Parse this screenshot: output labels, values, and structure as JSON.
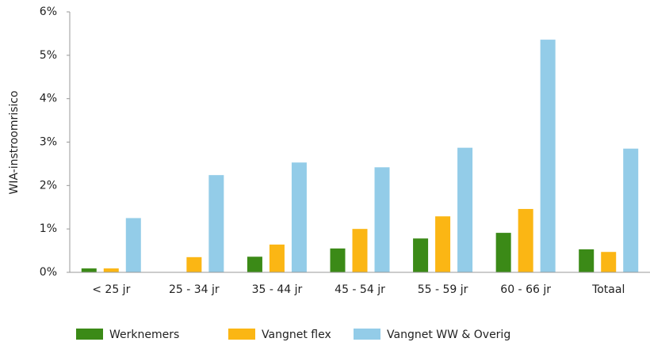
{
  "chart_data": {
    "type": "bar",
    "ylabel": "WIA-instroomrisico",
    "categories": [
      "< 25 jr",
      "25 - 34 jr",
      "35 - 44 jr",
      "45 - 54 jr",
      "55 - 59 jr",
      "60 - 66 jr",
      "Totaal"
    ],
    "series": [
      {
        "name": "Werknemers",
        "color": "#3b8a17",
        "values": [
          0.09,
          0,
          0.36,
          0.55,
          0.78,
          0.91,
          0.53
        ]
      },
      {
        "name": "Vangnet flex",
        "color": "#fbb614",
        "values": [
          0.09,
          0.35,
          0.64,
          1.0,
          1.29,
          1.46,
          0.47
        ]
      },
      {
        "name": "Vangnet WW & Overig",
        "color": "#93cce8",
        "values": [
          1.25,
          2.24,
          2.53,
          2.42,
          2.87,
          5.36,
          2.85
        ]
      }
    ],
    "ylim": [
      0,
      6
    ],
    "yticks": [
      {
        "value": 0,
        "label": "0%"
      },
      {
        "value": 1,
        "label": "1%"
      },
      {
        "value": 2,
        "label": "2%"
      },
      {
        "value": 3,
        "label": "3%"
      },
      {
        "value": 4,
        "label": "4%"
      },
      {
        "value": 5,
        "label": "5%"
      },
      {
        "value": 6,
        "label": "6%"
      }
    ],
    "legend": "bottom"
  }
}
